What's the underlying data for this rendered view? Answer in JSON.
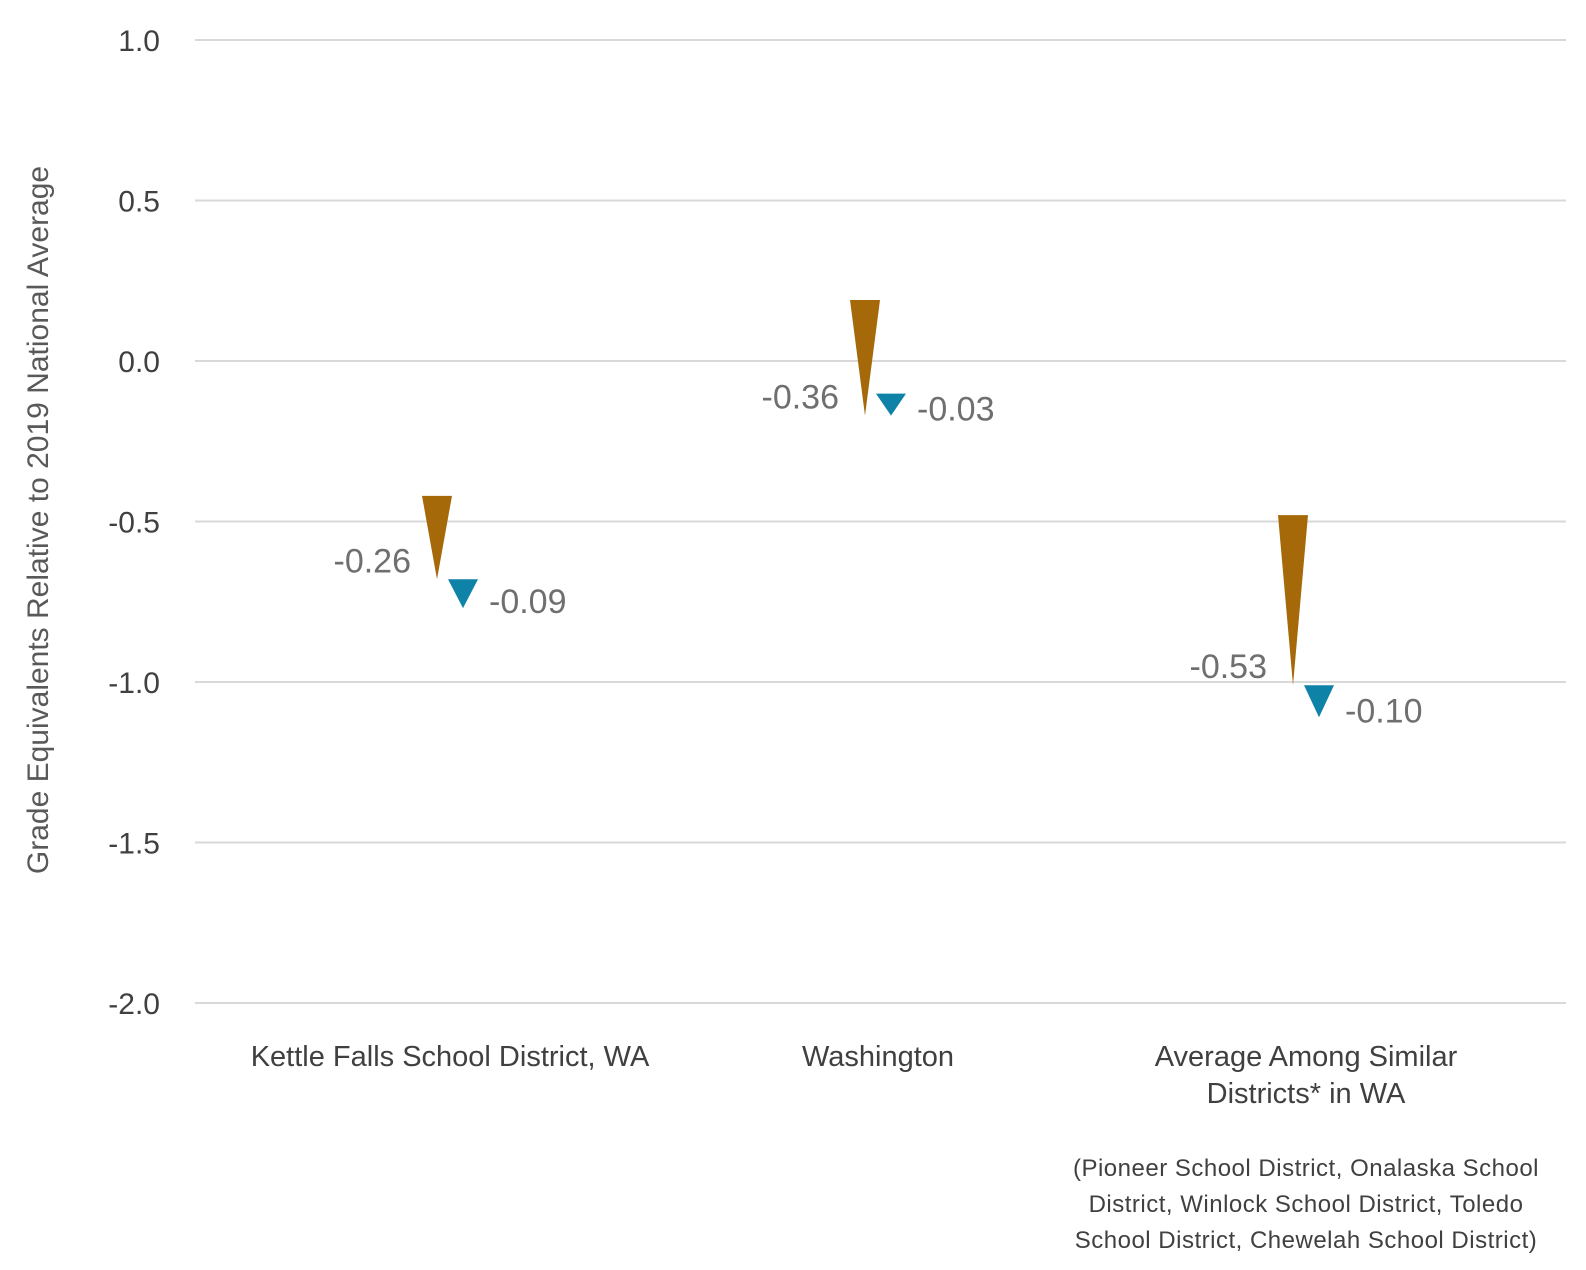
{
  "chart_data": {
    "type": "arrow",
    "ylabel": "Grade Equivalents Relative to 2019 National Average",
    "xlabel": "",
    "ylim": [
      -2.0,
      1.0
    ],
    "yticks": [
      "1.0",
      "0.5",
      "0.0",
      "-0.5",
      "-1.0",
      "-1.5",
      "-2.0"
    ],
    "grid": true,
    "categories": [
      {
        "label_lines": [
          "Kettle Falls School District, WA"
        ]
      },
      {
        "label_lines": [
          "Washington"
        ]
      },
      {
        "label_lines": [
          "Average Among Similar",
          "Districts* in WA"
        ]
      }
    ],
    "series": [
      {
        "color": "#a5690a",
        "points": [
          {
            "start": -0.42,
            "end": -0.68,
            "label": "-0.26"
          },
          {
            "start": 0.19,
            "end": -0.17,
            "label": "-0.36"
          },
          {
            "start": -0.48,
            "end": -1.01,
            "label": "-0.53"
          }
        ]
      },
      {
        "color": "#0f82a8",
        "points": [
          {
            "start": -0.68,
            "end": -0.77,
            "label": "-0.09"
          },
          {
            "start": -0.14,
            "end": -0.17,
            "label": "-0.03"
          },
          {
            "start": -1.01,
            "end": -1.11,
            "label": "-0.10"
          }
        ]
      }
    ],
    "footnote_lines": [
      "(Pioneer School District, Onalaska School",
      "District, Winlock School District, Toledo",
      "School District, Chewelah School District)"
    ]
  }
}
